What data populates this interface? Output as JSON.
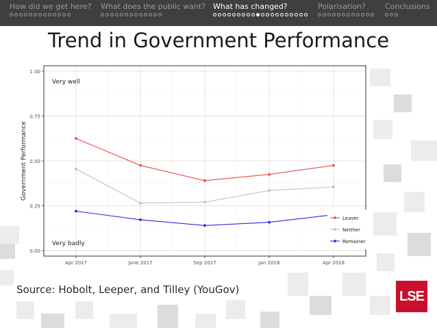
{
  "nav": {
    "items": [
      {
        "label": "How did we get here?",
        "dots": 13,
        "active": false,
        "current": -1
      },
      {
        "label": "What does the public want?",
        "dots": 13,
        "active": false,
        "current": -1
      },
      {
        "label": "What has changed?",
        "dots": 20,
        "active": true,
        "current": 9
      },
      {
        "label": "Polarisation?",
        "dots": 12,
        "active": false,
        "current": -1
      },
      {
        "label": "Conclusions",
        "dots": 3,
        "active": false,
        "current": -1
      }
    ]
  },
  "slide": {
    "title": "Trend in Government Performance",
    "source": "Source: Hobolt, Leeper, and Tilley (YouGov)",
    "logo_text": "LSE"
  },
  "chart_data": {
    "type": "line",
    "x": [
      "Apr 2017",
      "June 2017",
      "Sep 2017",
      "Jan 2018",
      "Apr 2018"
    ],
    "ylabel": "Government Performance",
    "xlabel": "",
    "ylim": [
      0,
      1
    ],
    "yticks": [
      "0.00",
      "0.25",
      "0.50",
      "0.75",
      "1.00"
    ],
    "annotations": {
      "top": "Very well",
      "bottom": "Very badly"
    },
    "series": [
      {
        "name": "Leaver",
        "color": "#e8484a",
        "values": [
          0.625,
          0.475,
          0.39,
          0.425,
          0.475
        ]
      },
      {
        "name": "Neither",
        "color": "#bdbdbd",
        "values": [
          0.455,
          0.265,
          0.27,
          0.335,
          0.355
        ]
      },
      {
        "name": "Remainer",
        "color": "#2a2ad8",
        "values": [
          0.22,
          0.172,
          0.14,
          0.158,
          0.2
        ]
      }
    ],
    "grid": true,
    "legend": "bottom-right"
  }
}
